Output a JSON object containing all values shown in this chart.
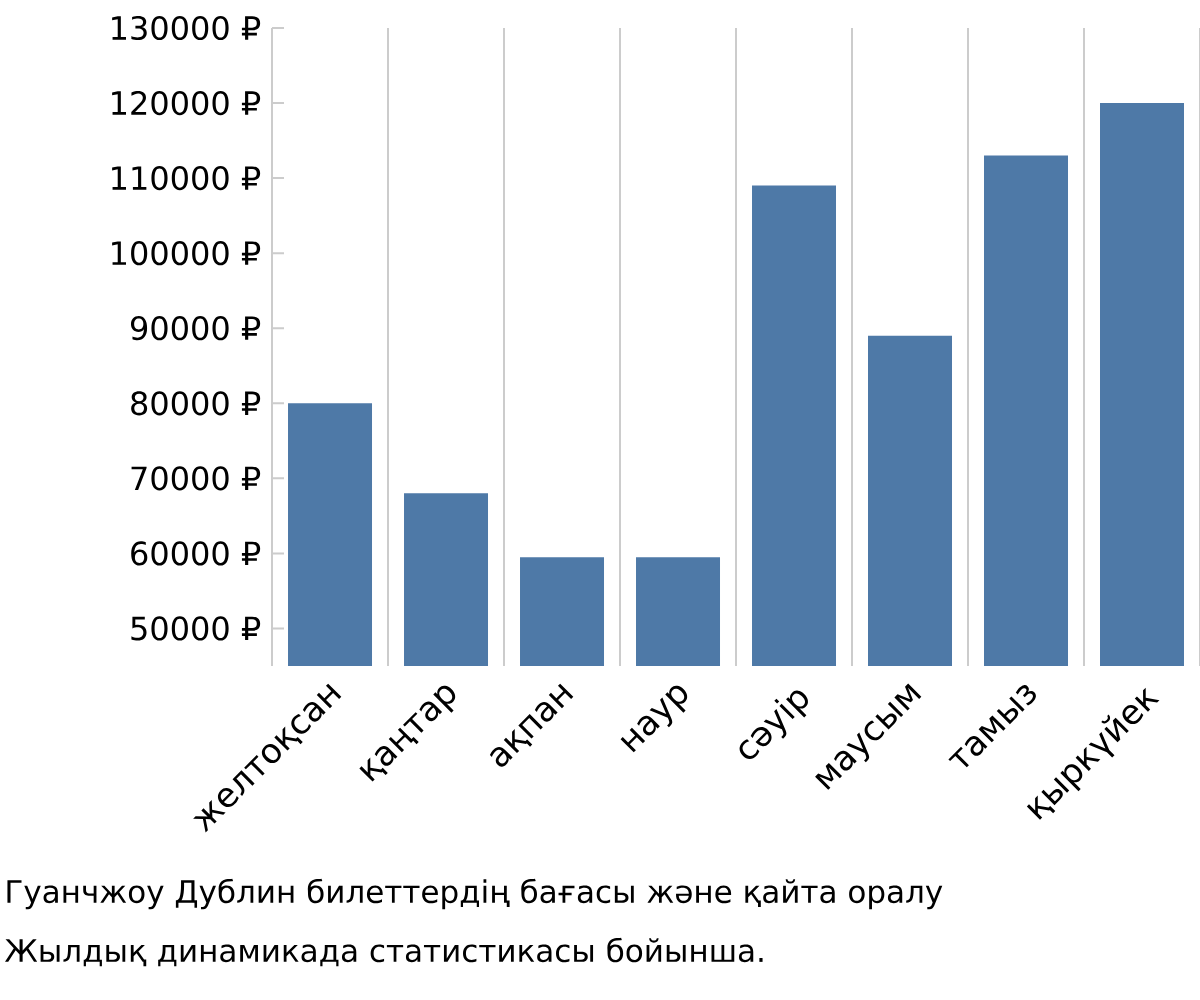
{
  "chart_data": {
    "type": "bar",
    "categories": [
      "желтоқсан",
      "қаңтар",
      "ақпан",
      "наур",
      "сәуір",
      "маусым",
      "тамыз",
      "қыркүйек"
    ],
    "values": [
      80000,
      68000,
      59500,
      59500,
      109000,
      89000,
      113000,
      120000
    ],
    "color": "#4e79a7",
    "ylim": [
      45000,
      130000
    ],
    "yticks": [
      {
        "value": 50000,
        "label": "50000 ₽"
      },
      {
        "value": 60000,
        "label": "60000 ₽"
      },
      {
        "value": 70000,
        "label": "70000 ₽"
      },
      {
        "value": 80000,
        "label": "80000 ₽"
      },
      {
        "value": 90000,
        "label": "90000 ₽"
      },
      {
        "value": 100000,
        "label": "100000 ₽"
      },
      {
        "value": 110000,
        "label": "110000 ₽"
      },
      {
        "value": 120000,
        "label": "120000 ₽"
      },
      {
        "value": 130000,
        "label": "130000 ₽"
      }
    ],
    "grid": "x",
    "annotations": [
      "Гуанчжоу Дублин билеттердің бағасы және қайта оралу",
      "Жылдық динамикада статистикасы бойынша."
    ]
  }
}
